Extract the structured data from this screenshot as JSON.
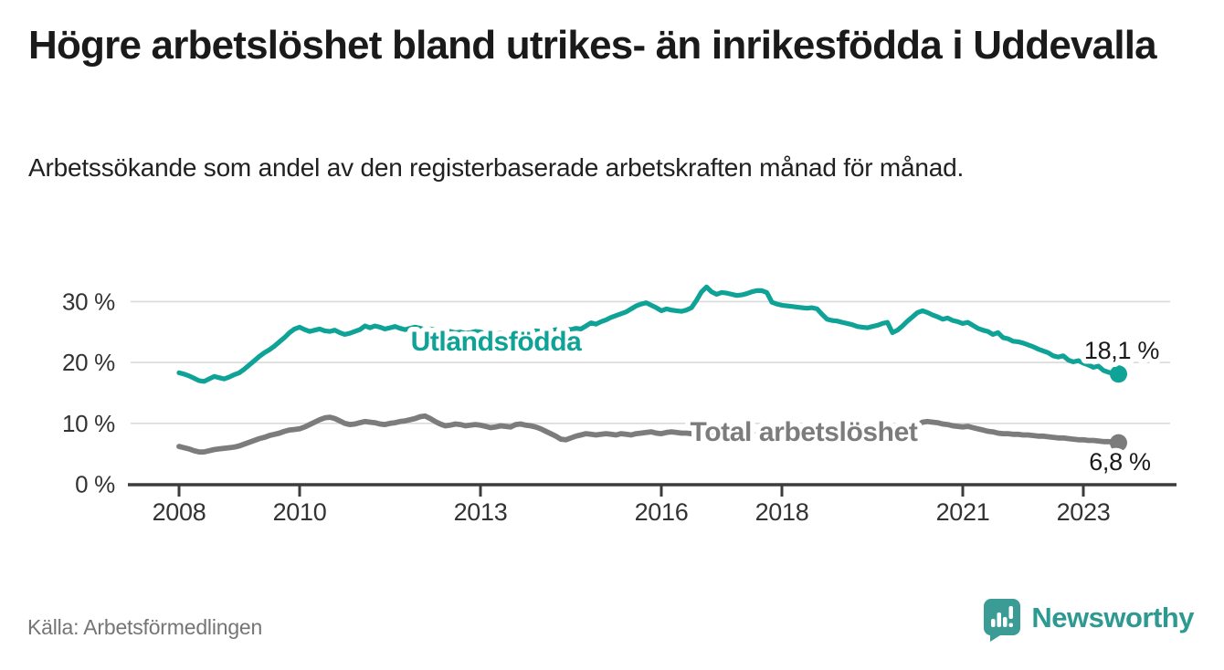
{
  "header": {
    "title": "Högre arbetslöshet bland utrikes- än inrikesfödda i Uddevalla",
    "subtitle": "Arbetssökande som andel av den registerbaserade arbetskraften månad för månad."
  },
  "footer": {
    "source": "Källa: Arbetsförmedlingen",
    "brand": "Newsworthy"
  },
  "colors": {
    "accent_teal": "#0FA296",
    "series_gray": "#7C7C7C",
    "logo_teal": "#3A9C95",
    "logo_text_teal": "#2D9A92",
    "gridline": "#DADADA",
    "axis": "#3C3C3C",
    "text_dark": "#1A1A1A",
    "text_muted": "#757575"
  },
  "chart_data": {
    "type": "line",
    "title": "Högre arbetslöshet bland utrikes- än inrikesfödda i Uddevalla",
    "subtitle": "Arbetssökande som andel av den registerbaserade arbetskraften månad för månad.",
    "xlabel": "",
    "ylabel": "",
    "x_unit": "month",
    "x_start_year": 2008,
    "x_start_month": 1,
    "x_end_label": "aug 2023",
    "x_axis_ticks": [
      2008,
      2010,
      2013,
      2016,
      2018,
      2021,
      2023
    ],
    "y_axis_ticks": [
      0,
      10,
      20,
      30
    ],
    "y_tick_suffix": " %",
    "ylim": [
      0,
      33.5
    ],
    "grid": "horizontal",
    "legend_position": "inline-labels",
    "series": [
      {
        "name": "Utlandsfödda",
        "color": "#0FA296",
        "end_label": "18,1 %",
        "end_value": 18.1,
        "values": [
          18.3,
          18.1,
          17.8,
          17.4,
          17.0,
          16.9,
          17.3,
          17.7,
          17.5,
          17.3,
          17.6,
          18.0,
          18.3,
          18.9,
          19.6,
          20.3,
          21.0,
          21.6,
          22.1,
          22.7,
          23.4,
          24.1,
          24.9,
          25.5,
          25.8,
          25.4,
          25.1,
          25.3,
          25.5,
          25.2,
          25.1,
          25.3,
          24.9,
          24.6,
          24.8,
          25.1,
          25.4,
          26.0,
          25.7,
          26.0,
          25.8,
          25.5,
          25.7,
          25.9,
          25.6,
          25.4,
          25.6,
          25.8,
          25.6,
          25.4,
          25.5,
          25.3,
          25.2,
          25.0,
          25.1,
          24.9,
          25.0,
          24.8,
          24.9,
          25.1,
          25.0,
          24.8,
          24.9,
          24.7,
          24.8,
          24.6,
          24.7,
          24.9,
          25.0,
          24.8,
          25.0,
          25.2,
          25.1,
          25.3,
          25.2,
          25.4,
          25.3,
          25.5,
          25.4,
          25.6,
          25.5,
          26.0,
          26.5,
          26.3,
          26.7,
          27.0,
          27.4,
          27.7,
          28.0,
          28.3,
          28.8,
          29.3,
          29.6,
          29.8,
          29.4,
          29.0,
          28.5,
          28.8,
          28.6,
          28.5,
          28.4,
          28.6,
          29.0,
          30.2,
          31.6,
          32.4,
          31.6,
          31.2,
          31.5,
          31.4,
          31.2,
          31.0,
          31.1,
          31.3,
          31.6,
          31.8,
          31.8,
          31.5,
          29.9,
          29.6,
          29.4,
          29.3,
          29.2,
          29.1,
          29.0,
          28.9,
          29.0,
          28.8,
          27.9,
          27.1,
          26.9,
          26.8,
          26.6,
          26.4,
          26.2,
          25.9,
          25.8,
          25.7,
          25.9,
          26.1,
          26.4,
          26.6,
          24.9,
          25.3,
          26.0,
          26.8,
          27.5,
          28.2,
          28.5,
          28.2,
          27.8,
          27.5,
          27.1,
          27.3,
          26.9,
          26.7,
          26.4,
          26.6,
          26.1,
          25.6,
          25.3,
          25.1,
          24.6,
          24.9,
          24.1,
          23.9,
          23.5,
          23.4,
          23.2,
          22.9,
          22.6,
          22.2,
          21.9,
          21.6,
          21.1,
          20.9,
          21.1,
          20.4,
          20.1,
          20.3,
          19.9,
          19.6,
          19.2,
          19.4,
          18.7,
          18.4,
          18.2,
          18.1
        ]
      },
      {
        "name": "Total arbetslöshet",
        "color": "#7C7C7C",
        "end_label": "6,8 %",
        "end_value": 6.8,
        "values": [
          6.2,
          6.0,
          5.8,
          5.5,
          5.3,
          5.3,
          5.5,
          5.7,
          5.8,
          5.9,
          6.0,
          6.1,
          6.3,
          6.6,
          6.9,
          7.2,
          7.5,
          7.7,
          8.0,
          8.2,
          8.4,
          8.7,
          8.9,
          9.0,
          9.1,
          9.4,
          9.8,
          10.2,
          10.6,
          10.9,
          11.0,
          10.8,
          10.4,
          10.0,
          9.8,
          9.9,
          10.1,
          10.3,
          10.2,
          10.1,
          9.9,
          9.8,
          10.0,
          10.1,
          10.3,
          10.4,
          10.6,
          10.8,
          11.1,
          11.2,
          10.8,
          10.3,
          9.9,
          9.6,
          9.7,
          9.9,
          9.8,
          9.6,
          9.7,
          9.8,
          9.7,
          9.5,
          9.3,
          9.4,
          9.6,
          9.5,
          9.4,
          9.8,
          9.9,
          9.7,
          9.6,
          9.4,
          9.1,
          8.7,
          8.3,
          7.9,
          7.4,
          7.3,
          7.6,
          7.9,
          8.1,
          8.3,
          8.2,
          8.1,
          8.2,
          8.3,
          8.2,
          8.1,
          8.3,
          8.2,
          8.1,
          8.3,
          8.4,
          8.5,
          8.6,
          8.4,
          8.3,
          8.5,
          8.6,
          8.5,
          8.4,
          8.4,
          8.3,
          8.4,
          8.5,
          8.4,
          8.3,
          8.3,
          8.2,
          8.1,
          8.1,
          8.0,
          8.0,
          8.1,
          8.2,
          8.1,
          8.0,
          7.9,
          7.8,
          7.8,
          7.7,
          7.6,
          7.6,
          7.5,
          7.5,
          7.6,
          7.7,
          7.6,
          7.5,
          7.4,
          7.4,
          7.5,
          7.5,
          7.4,
          7.4,
          7.3,
          7.3,
          7.4,
          7.5,
          7.6,
          7.7,
          7.6,
          7.7,
          7.9,
          8.2,
          8.5,
          9.0,
          9.7,
          10.2,
          10.3,
          10.2,
          10.1,
          9.9,
          9.8,
          9.6,
          9.5,
          9.4,
          9.5,
          9.3,
          9.1,
          8.9,
          8.7,
          8.6,
          8.4,
          8.3,
          8.3,
          8.2,
          8.2,
          8.1,
          8.1,
          8.0,
          7.9,
          7.9,
          7.8,
          7.7,
          7.6,
          7.6,
          7.5,
          7.4,
          7.3,
          7.3,
          7.2,
          7.2,
          7.1,
          7.0,
          7.0,
          6.9,
          6.8
        ]
      }
    ]
  }
}
